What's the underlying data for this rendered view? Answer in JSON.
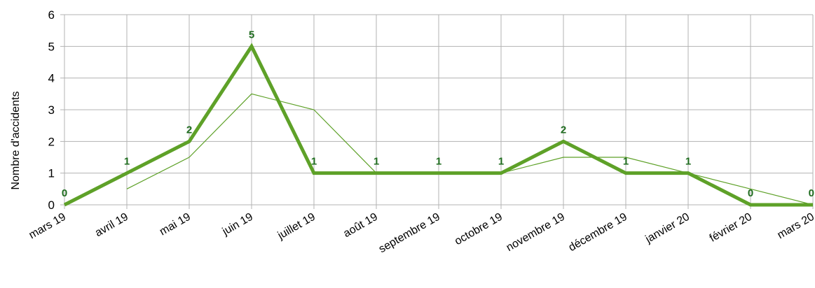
{
  "chart_data": {
    "type": "line",
    "ylabel": "Nombre d'accidents",
    "xlabel": "",
    "ylim": [
      0,
      6
    ],
    "yticks": [
      "0",
      "1",
      "2",
      "3",
      "4",
      "5",
      "6"
    ],
    "grid": true,
    "categories": [
      "mars 19",
      "avril 19",
      "mai 19",
      "juin 19",
      "juillet 19",
      "août 19",
      "septembre 19",
      "octobre 19",
      "novembre 19",
      "décembre 19",
      "janvier 20",
      "février 20",
      "mars 20"
    ],
    "series": [
      {
        "values": [
          0,
          1,
          2,
          5,
          1,
          1,
          1,
          1,
          2,
          1,
          1,
          0,
          0
        ],
        "data_labels": [
          "0",
          "1",
          "2",
          "5",
          "1",
          "1",
          "1",
          "1",
          "2",
          "1",
          "1",
          "0",
          "0"
        ],
        "color": "#5ea128",
        "style": "thick"
      },
      {
        "values": [
          null,
          0.5,
          1.5,
          3.5,
          3,
          1,
          1,
          1,
          1.5,
          1.5,
          1,
          0.5,
          0
        ],
        "color": "#5ea128",
        "style": "thin"
      }
    ],
    "label_color": "#1e6b1e",
    "grid_color": "#b3b3b3"
  }
}
